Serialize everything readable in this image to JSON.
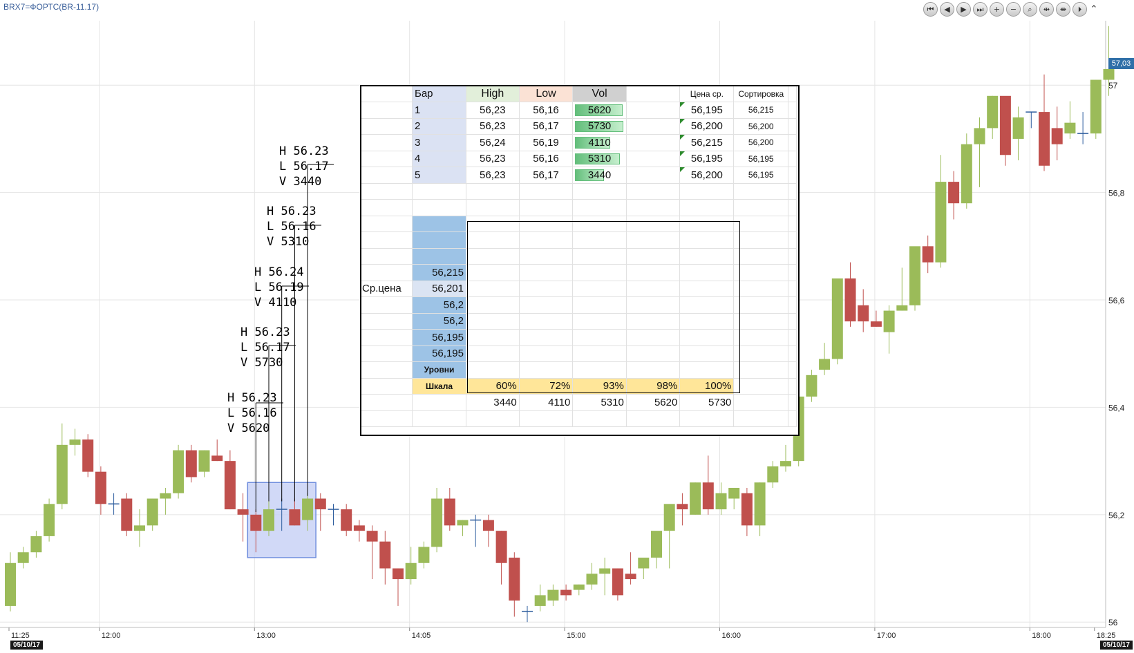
{
  "window": {
    "instrument_title": "BRX7=ФОРТС(BR-11.17)",
    "date_start": "05/10/17",
    "date_end": "05/10/17",
    "current_price": "57,03"
  },
  "toolbar": {
    "buttons": [
      {
        "name": "scroll-first-button",
        "icon": "double-left-arrow",
        "glyph": "⏮"
      },
      {
        "name": "scroll-left-button",
        "icon": "left-arrow",
        "glyph": "◀"
      },
      {
        "name": "scroll-right-button",
        "icon": "right-arrow",
        "glyph": "▶"
      },
      {
        "name": "scroll-last-button",
        "icon": "double-right-arrow",
        "glyph": "⏭"
      },
      {
        "name": "zoom-in-button",
        "icon": "plus-circle",
        "glyph": "+"
      },
      {
        "name": "zoom-out-button",
        "icon": "minus-circle",
        "glyph": "−"
      },
      {
        "name": "zoom-fit-button",
        "icon": "magnifier",
        "glyph": "⌕"
      },
      {
        "name": "expand-horizontal-button",
        "icon": "horizontal-arrows",
        "glyph": "⇹"
      },
      {
        "name": "compress-horizontal-button",
        "icon": "horizontal-compress",
        "glyph": "⇼"
      },
      {
        "name": "go-end-button",
        "icon": "right-end",
        "glyph": "⏵"
      }
    ],
    "collapse_glyph": "⌃"
  },
  "colors": {
    "bull": "#9bbb59",
    "bear": "#c0504d",
    "doji": "#2e5d9e",
    "grid": "#e4e4e4",
    "selection_fill": "#c6d0f5",
    "selection_border": "#6f8ddd",
    "price_tag": "#2f6fa8"
  },
  "chart_data": {
    "type": "candlestick",
    "title": "BRX7=ФОРТС(BR-11.17)",
    "y_axis": {
      "ticks": [
        "57",
        "56,8",
        "56,6",
        "56,4",
        "56,2",
        "56"
      ],
      "tick_values": [
        57.0,
        56.8,
        56.6,
        56.4,
        56.2,
        56.0
      ],
      "ylim": [
        55.99,
        57.12
      ]
    },
    "x_axis": {
      "ticks": [
        "11:25",
        "12:00",
        "13:00",
        "14:05",
        "15:00",
        "16:00",
        "17:00",
        "18:00",
        "18:25"
      ],
      "tick_bar_index": [
        0,
        7,
        19,
        31,
        43,
        55,
        67,
        79,
        84
      ]
    },
    "candles_ohlc": [
      [
        56.03,
        56.13,
        56.02,
        56.11
      ],
      [
        56.11,
        56.14,
        56.1,
        56.13
      ],
      [
        56.13,
        56.17,
        56.12,
        56.16
      ],
      [
        56.16,
        56.23,
        56.15,
        56.22
      ],
      [
        56.22,
        56.37,
        56.21,
        56.33
      ],
      [
        56.33,
        56.36,
        56.31,
        56.34
      ],
      [
        56.34,
        56.35,
        56.27,
        56.28
      ],
      [
        56.28,
        56.29,
        56.2,
        56.22
      ],
      [
        56.22,
        56.24,
        56.2,
        56.22
      ],
      [
        56.23,
        56.24,
        56.16,
        56.17
      ],
      [
        56.17,
        56.21,
        56.14,
        56.18
      ],
      [
        56.18,
        56.23,
        56.17,
        56.23
      ],
      [
        56.23,
        56.25,
        56.2,
        56.24
      ],
      [
        56.24,
        56.33,
        56.23,
        56.32
      ],
      [
        56.32,
        56.33,
        56.26,
        56.27
      ],
      [
        56.28,
        56.32,
        56.27,
        56.32
      ],
      [
        56.31,
        56.34,
        56.3,
        56.3
      ],
      [
        56.3,
        56.32,
        56.21,
        56.21
      ],
      [
        56.21,
        56.24,
        56.15,
        56.2
      ],
      [
        56.2,
        56.21,
        56.13,
        56.17
      ],
      [
        56.17,
        56.23,
        56.16,
        56.21
      ],
      [
        56.21,
        56.23,
        56.17,
        56.21
      ],
      [
        56.21,
        56.23,
        56.18,
        56.18
      ],
      [
        56.19,
        56.24,
        56.17,
        56.23
      ],
      [
        56.23,
        56.24,
        56.17,
        56.21
      ],
      [
        56.21,
        56.22,
        56.18,
        56.21
      ],
      [
        56.21,
        56.22,
        56.16,
        56.17
      ],
      [
        56.18,
        56.19,
        56.15,
        56.17
      ],
      [
        56.17,
        56.18,
        56.08,
        56.15
      ],
      [
        56.15,
        56.17,
        56.07,
        56.1
      ],
      [
        56.1,
        56.1,
        56.03,
        56.08
      ],
      [
        56.08,
        56.14,
        56.07,
        56.11
      ],
      [
        56.11,
        56.15,
        56.1,
        56.14
      ],
      [
        56.14,
        56.25,
        56.13,
        56.23
      ],
      [
        56.23,
        56.25,
        56.17,
        56.18
      ],
      [
        56.18,
        56.19,
        56.16,
        56.19
      ],
      [
        56.19,
        56.2,
        56.14,
        56.19
      ],
      [
        56.19,
        56.2,
        56.14,
        56.17
      ],
      [
        56.17,
        56.17,
        56.07,
        56.11
      ],
      [
        56.12,
        56.13,
        56.01,
        56.04
      ],
      [
        56.02,
        56.03,
        56.0,
        56.02
      ],
      [
        56.03,
        56.07,
        56.02,
        56.05
      ],
      [
        56.04,
        56.07,
        56.03,
        56.06
      ],
      [
        56.06,
        56.07,
        56.04,
        56.05
      ],
      [
        56.06,
        56.07,
        56.05,
        56.07
      ],
      [
        56.07,
        56.11,
        56.06,
        56.09
      ],
      [
        56.09,
        56.12,
        56.05,
        56.1
      ],
      [
        56.1,
        56.1,
        56.04,
        56.05
      ],
      [
        56.09,
        56.13,
        56.07,
        56.08
      ],
      [
        56.1,
        56.12,
        56.08,
        56.12
      ],
      [
        56.12,
        56.16,
        56.1,
        56.17
      ],
      [
        56.17,
        56.2,
        56.1,
        56.22
      ],
      [
        56.22,
        56.24,
        56.18,
        56.21
      ],
      [
        56.2,
        56.26,
        56.2,
        56.26
      ],
      [
        56.26,
        56.31,
        56.2,
        56.21
      ],
      [
        56.21,
        56.26,
        56.2,
        56.24
      ],
      [
        56.23,
        56.25,
        56.21,
        56.25
      ],
      [
        56.24,
        56.25,
        56.16,
        56.18
      ],
      [
        56.18,
        56.26,
        56.16,
        56.26
      ],
      [
        56.26,
        56.3,
        56.25,
        56.29
      ],
      [
        56.29,
        56.33,
        56.28,
        56.3
      ],
      [
        56.3,
        56.41,
        56.29,
        56.42
      ],
      [
        56.42,
        56.47,
        56.41,
        56.46
      ],
      [
        56.47,
        56.52,
        56.46,
        56.49
      ],
      [
        56.49,
        56.56,
        56.48,
        56.64
      ],
      [
        56.64,
        56.67,
        56.55,
        56.56
      ],
      [
        56.59,
        56.62,
        56.54,
        56.56
      ],
      [
        56.56,
        56.58,
        56.55,
        56.55
      ],
      [
        56.54,
        56.59,
        56.5,
        56.58
      ],
      [
        56.58,
        56.66,
        56.58,
        56.59
      ],
      [
        56.59,
        56.69,
        56.58,
        56.7
      ],
      [
        56.7,
        56.72,
        56.65,
        56.67
      ],
      [
        56.67,
        56.87,
        56.66,
        56.82
      ],
      [
        56.82,
        56.84,
        56.75,
        56.78
      ],
      [
        56.78,
        56.91,
        56.77,
        56.89
      ],
      [
        56.89,
        56.94,
        56.81,
        56.92
      ],
      [
        56.92,
        56.98,
        56.9,
        56.98
      ],
      [
        56.98,
        56.97,
        56.85,
        56.87
      ],
      [
        56.9,
        56.96,
        56.86,
        56.94
      ],
      [
        56.95,
        56.95,
        56.92,
        56.95
      ],
      [
        56.95,
        57.02,
        56.84,
        56.85
      ],
      [
        56.92,
        56.96,
        56.86,
        56.89
      ],
      [
        56.91,
        56.97,
        56.9,
        56.93
      ],
      [
        56.91,
        56.95,
        56.89,
        56.91
      ],
      [
        56.91,
        57.01,
        56.9,
        57.01
      ],
      [
        57.01,
        57.11,
        56.98,
        57.03
      ]
    ],
    "selected_bars": [
      19,
      20,
      21,
      22,
      23
    ]
  },
  "annotations": [
    {
      "h": "H 56.23",
      "l": "L 56.16",
      "v": "V 5620"
    },
    {
      "h": "H 56.23",
      "l": "L 56.17",
      "v": "V 5730"
    },
    {
      "h": "H 56.24",
      "l": "L 56.19",
      "v": "V 4110"
    },
    {
      "h": "H 56.23",
      "l": "L 56.16",
      "v": "V 5310"
    },
    {
      "h": "H 56.23",
      "l": "L 56.17",
      "v": "V 3440"
    }
  ],
  "sheet": {
    "headers": {
      "bar": "Бар",
      "high": "High",
      "low": "Low",
      "vol": "Vol",
      "avg_price": "Цена ср.",
      "sort": "Сортировка"
    },
    "rows": [
      {
        "bar": "1",
        "high": "56,23",
        "low": "56,16",
        "vol": "5620",
        "vol_fraction": 0.98,
        "avg": "56,195",
        "sort": "56,215"
      },
      {
        "bar": "2",
        "high": "56,23",
        "low": "56,17",
        "vol": "5730",
        "vol_fraction": 1.0,
        "avg": "56,200",
        "sort": "56,200"
      },
      {
        "bar": "3",
        "high": "56,24",
        "low": "56,19",
        "vol": "4110",
        "vol_fraction": 0.72,
        "avg": "56,215",
        "sort": "56,200"
      },
      {
        "bar": "4",
        "high": "56,23",
        "low": "56,16",
        "vol": "5310",
        "vol_fraction": 0.93,
        "avg": "56,195",
        "sort": "56,195"
      },
      {
        "bar": "5",
        "high": "56,23",
        "low": "56,17",
        "vol": "3440",
        "vol_fraction": 0.6,
        "avg": "56,200",
        "sort": "56,195"
      }
    ],
    "levels": [
      "56,215",
      "56,201",
      "56,2",
      "56,2",
      "56,195",
      "56,195"
    ],
    "avg_label": "Ср.цена",
    "levels_label": "Уровни",
    "scale_label": "Шкала",
    "scale": [
      "60%",
      "72%",
      "93%",
      "98%",
      "100%"
    ],
    "scale_volumes": [
      "3440",
      "4110",
      "5310",
      "5620",
      "5730"
    ]
  }
}
